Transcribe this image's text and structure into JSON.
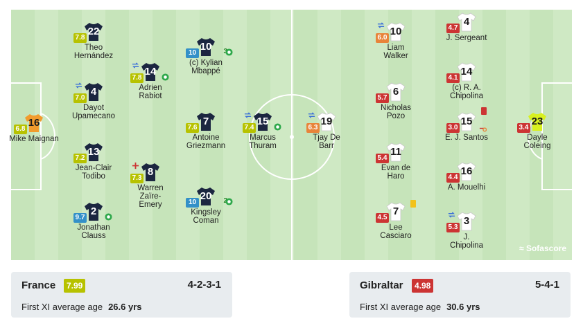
{
  "colors": {
    "rating_yellow": "#b7c200",
    "rating_orange": "#e8843a",
    "rating_blue": "#3390c8",
    "rating_red": "#cc3433",
    "france_shirt": "#1b2640",
    "gibraltar_shirt": "#ffffff",
    "gk_france": "#f19c2d",
    "gk_gibraltar": "#d8f020"
  },
  "brand": "Sofascore",
  "home": {
    "name": "France",
    "rating": "7.99",
    "formation": "4-2-3-1",
    "age_label": "First XI average age",
    "age_value": "26.6 yrs",
    "players": [
      {
        "number": "16",
        "name": "Mike Maignan",
        "rating": "6.8",
        "rating_color": "yellow",
        "sub": false,
        "goals": 0,
        "gk": true
      },
      {
        "number": "22",
        "name": "Theo Hernández",
        "rating": "7.8",
        "rating_color": "yellow",
        "sub": false,
        "goals": 0
      },
      {
        "number": "4",
        "name": "Dayot Upamecano",
        "rating": "7.0",
        "rating_color": "yellow",
        "sub": true,
        "goals": 0
      },
      {
        "number": "13",
        "name": "Jean-Clair Todibo",
        "rating": "7.2",
        "rating_color": "yellow",
        "sub": false,
        "goals": 0
      },
      {
        "number": "2",
        "name": "Jonathan Clauss",
        "rating": "9.7",
        "rating_color": "blue",
        "sub": false,
        "goals": 1
      },
      {
        "number": "14",
        "name": "Adrien Rabiot",
        "rating": "7.8",
        "rating_color": "yellow",
        "sub": true,
        "goals": 1
      },
      {
        "number": "8",
        "name": "Warren Zaïre-Emery",
        "rating": "7.3",
        "rating_color": "yellow",
        "sub": false,
        "goals": 0,
        "injury": true
      },
      {
        "number": "10",
        "name": "(c) Kylian Mbappé",
        "rating": "10",
        "rating_color": "blue",
        "sub": false,
        "goals": 3,
        "goal_count": "3"
      },
      {
        "number": "7",
        "name": "Antoine Griezmann",
        "rating": "7.6",
        "rating_color": "yellow",
        "sub": false,
        "goals": 0
      },
      {
        "number": "20",
        "name": "Kingsley Coman",
        "rating": "10",
        "rating_color": "blue",
        "sub": false,
        "goals": 2,
        "goal_count": "2"
      },
      {
        "number": "15",
        "name": "Marcus Thuram",
        "rating": "7.4",
        "rating_color": "yellow",
        "sub": true,
        "goals": 1
      }
    ]
  },
  "away": {
    "name": "Gibraltar",
    "rating": "4.98",
    "formation": "5-4-1",
    "age_label": "First XI average age",
    "age_value": "30.6 yrs",
    "players": [
      {
        "number": "19",
        "name": "Tjay De Barr",
        "rating": "6.3",
        "rating_color": "orange",
        "sub": true
      },
      {
        "number": "10",
        "name": "Liam Walker",
        "rating": "6.0",
        "rating_color": "orange",
        "sub": true
      },
      {
        "number": "6",
        "name": "Nicholas Pozo",
        "rating": "5.7",
        "rating_color": "red",
        "sub": false
      },
      {
        "number": "11",
        "name": "Evan de Haro",
        "rating": "5.4",
        "rating_color": "red",
        "sub": false
      },
      {
        "number": "7",
        "name": "Lee Casciaro",
        "rating": "4.5",
        "rating_color": "red",
        "sub": false,
        "card": "yellow"
      },
      {
        "number": "4",
        "name": "J. Sergeant",
        "rating": "4.7",
        "rating_color": "red",
        "sub": false
      },
      {
        "number": "14",
        "name": "(c) R. A. Chipolina",
        "rating": "4.1",
        "rating_color": "red",
        "sub": false
      },
      {
        "number": "15",
        "name": "E. J. Santos",
        "rating": "3.0",
        "rating_color": "red",
        "sub": false,
        "card": "red",
        "own_goal": true
      },
      {
        "number": "16",
        "name": "A. Mouelhi",
        "rating": "4.4",
        "rating_color": "red",
        "sub": false
      },
      {
        "number": "3",
        "name": "J. Chipolina",
        "rating": "5.3",
        "rating_color": "red",
        "sub": true
      },
      {
        "number": "23",
        "name": "Dayle Coleing",
        "rating": "3.4",
        "rating_color": "red",
        "sub": false,
        "gk": true
      }
    ]
  }
}
